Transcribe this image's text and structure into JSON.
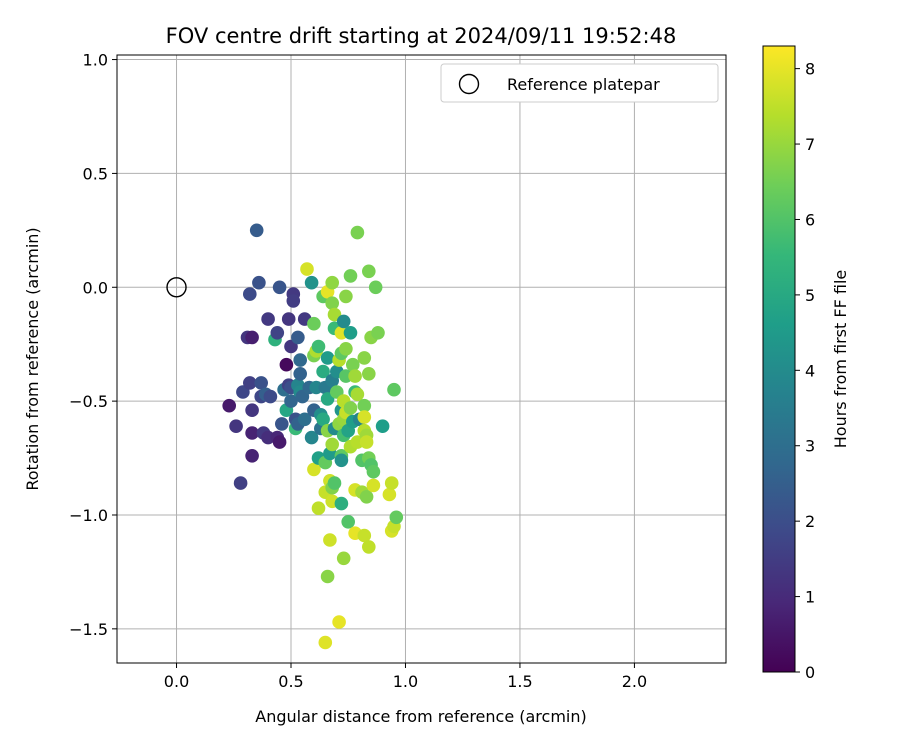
{
  "chart_data": {
    "type": "scatter",
    "title": "FOV centre drift starting at 2024/09/11 19:52:48",
    "xlabel": "Angular distance from reference (arcmin)",
    "ylabel": "Rotation from reference (arcmin)",
    "xlim": [
      -0.26,
      2.4
    ],
    "ylim": [
      -1.65,
      1.02
    ],
    "xticks": [
      0.0,
      0.5,
      1.0,
      1.5,
      2.0
    ],
    "xtick_labels": [
      "0.0",
      "0.5",
      "1.0",
      "1.5",
      "2.0"
    ],
    "yticks": [
      1.0,
      0.5,
      0.0,
      -0.5,
      -1.0,
      -1.5
    ],
    "ytick_labels": [
      "1.0",
      "0.5",
      "0.0",
      "−0.5",
      "−1.0",
      "−1.5"
    ],
    "grid": true,
    "legend": {
      "placement": "top-right",
      "entries": [
        {
          "label": "Reference platepar",
          "marker": "open-circle",
          "color": "#000000"
        }
      ]
    },
    "reference_point": {
      "x": 0.0,
      "y": 0.0
    },
    "colorbar": {
      "label": "Hours from first FF file",
      "min": 0,
      "max": 8.3,
      "ticks": [
        0,
        1,
        2,
        3,
        4,
        5,
        6,
        7,
        8
      ],
      "tick_labels": [
        "0",
        "1",
        "2",
        "3",
        "4",
        "5",
        "6",
        "7",
        "8"
      ],
      "colormap": "viridis",
      "colormap_stops": [
        "#440154",
        "#482878",
        "#3e4989",
        "#31688e",
        "#26828e",
        "#1f9e89",
        "#35b779",
        "#6ece58",
        "#b5de2b",
        "#fde725"
      ]
    },
    "points": [
      {
        "x": 0.23,
        "y": -0.52,
        "t": 0.6
      },
      {
        "x": 0.26,
        "y": -0.61,
        "t": 1.3
      },
      {
        "x": 0.28,
        "y": -0.86,
        "t": 1.6
      },
      {
        "x": 0.29,
        "y": -0.46,
        "t": 1.8
      },
      {
        "x": 0.31,
        "y": -0.22,
        "t": 1.3
      },
      {
        "x": 0.32,
        "y": -0.03,
        "t": 1.9
      },
      {
        "x": 0.32,
        "y": -0.42,
        "t": 1.6
      },
      {
        "x": 0.33,
        "y": -0.54,
        "t": 1.3
      },
      {
        "x": 0.33,
        "y": -0.64,
        "t": 0.8
      },
      {
        "x": 0.33,
        "y": -0.74,
        "t": 0.8
      },
      {
        "x": 0.33,
        "y": -0.22,
        "t": 0.7
      },
      {
        "x": 0.35,
        "y": 0.25,
        "t": 2.4
      },
      {
        "x": 0.36,
        "y": 0.02,
        "t": 2.1
      },
      {
        "x": 0.37,
        "y": -0.42,
        "t": 2.1
      },
      {
        "x": 0.37,
        "y": -0.48,
        "t": 1.8
      },
      {
        "x": 0.38,
        "y": -0.64,
        "t": 1.4
      },
      {
        "x": 0.39,
        "y": -0.47,
        "t": 2.5
      },
      {
        "x": 0.4,
        "y": -0.14,
        "t": 1.4
      },
      {
        "x": 0.4,
        "y": -0.66,
        "t": 1.1
      },
      {
        "x": 0.41,
        "y": -0.48,
        "t": 1.9
      },
      {
        "x": 0.43,
        "y": -0.23,
        "t": 5.3
      },
      {
        "x": 0.44,
        "y": -0.2,
        "t": 1.7
      },
      {
        "x": 0.44,
        "y": -0.66,
        "t": 0.9
      },
      {
        "x": 0.45,
        "y": -0.68,
        "t": 0.6
      },
      {
        "x": 0.45,
        "y": 0.0,
        "t": 2.2
      },
      {
        "x": 0.46,
        "y": -0.6,
        "t": 2.2
      },
      {
        "x": 0.47,
        "y": -0.45,
        "t": 3.0
      },
      {
        "x": 0.48,
        "y": -0.34,
        "t": 0.2
      },
      {
        "x": 0.48,
        "y": -0.54,
        "t": 4.9
      },
      {
        "x": 0.49,
        "y": -0.14,
        "t": 1.3
      },
      {
        "x": 0.49,
        "y": -0.43,
        "t": 1.6
      },
      {
        "x": 0.5,
        "y": -0.26,
        "t": 1.3
      },
      {
        "x": 0.5,
        "y": -0.5,
        "t": 2.7
      },
      {
        "x": 0.5,
        "y": -0.44,
        "t": 2.0
      },
      {
        "x": 0.51,
        "y": -0.03,
        "t": 1.4
      },
      {
        "x": 0.51,
        "y": -0.06,
        "t": 1.5
      },
      {
        "x": 0.52,
        "y": -0.62,
        "t": 5.6
      },
      {
        "x": 0.52,
        "y": -0.58,
        "t": 2.1
      },
      {
        "x": 0.53,
        "y": -0.22,
        "t": 2.4
      },
      {
        "x": 0.53,
        "y": -0.6,
        "t": 2.6
      },
      {
        "x": 0.53,
        "y": -0.43,
        "t": 3.8
      },
      {
        "x": 0.54,
        "y": -0.32,
        "t": 2.8
      },
      {
        "x": 0.54,
        "y": -0.38,
        "t": 2.6
      },
      {
        "x": 0.54,
        "y": -0.46,
        "t": 4.0
      },
      {
        "x": 0.55,
        "y": -0.48,
        "t": 2.7
      },
      {
        "x": 0.56,
        "y": -0.14,
        "t": 1.4
      },
      {
        "x": 0.56,
        "y": -0.58,
        "t": 3.0
      },
      {
        "x": 0.57,
        "y": 0.08,
        "t": 7.8
      },
      {
        "x": 0.58,
        "y": -0.44,
        "t": 2.8
      },
      {
        "x": 0.59,
        "y": 0.02,
        "t": 4.2
      },
      {
        "x": 0.59,
        "y": -0.66,
        "t": 3.8
      },
      {
        "x": 0.6,
        "y": -0.16,
        "t": 6.4
      },
      {
        "x": 0.6,
        "y": -0.3,
        "t": 6.6
      },
      {
        "x": 0.6,
        "y": -0.54,
        "t": 2.6
      },
      {
        "x": 0.6,
        "y": -0.8,
        "t": 7.8
      },
      {
        "x": 0.61,
        "y": -0.28,
        "t": 7.3
      },
      {
        "x": 0.61,
        "y": -0.44,
        "t": 3.8
      },
      {
        "x": 0.62,
        "y": -0.26,
        "t": 5.7
      },
      {
        "x": 0.62,
        "y": -0.75,
        "t": 4.7
      },
      {
        "x": 0.62,
        "y": -0.97,
        "t": 7.5
      },
      {
        "x": 0.63,
        "y": -0.56,
        "t": 4.1
      },
      {
        "x": 0.63,
        "y": -0.62,
        "t": 3.2
      },
      {
        "x": 0.64,
        "y": -0.04,
        "t": 6.2
      },
      {
        "x": 0.64,
        "y": -0.37,
        "t": 5.1
      },
      {
        "x": 0.64,
        "y": -0.58,
        "t": 5.0
      },
      {
        "x": 0.65,
        "y": -0.44,
        "t": 3.4
      },
      {
        "x": 0.65,
        "y": -0.9,
        "t": 7.6
      },
      {
        "x": 0.65,
        "y": -0.77,
        "t": 6.3
      },
      {
        "x": 0.65,
        "y": -1.56,
        "t": 7.9
      },
      {
        "x": 0.66,
        "y": -0.02,
        "t": 8.0
      },
      {
        "x": 0.66,
        "y": -0.31,
        "t": 4.5
      },
      {
        "x": 0.66,
        "y": -0.49,
        "t": 5.0
      },
      {
        "x": 0.66,
        "y": -0.63,
        "t": 6.8
      },
      {
        "x": 0.66,
        "y": -1.27,
        "t": 6.8
      },
      {
        "x": 0.67,
        "y": -1.11,
        "t": 7.7
      },
      {
        "x": 0.67,
        "y": -0.85,
        "t": 7.7
      },
      {
        "x": 0.67,
        "y": -0.73,
        "t": 4.5
      },
      {
        "x": 0.68,
        "y": 0.02,
        "t": 6.9
      },
      {
        "x": 0.68,
        "y": -0.07,
        "t": 6.7
      },
      {
        "x": 0.68,
        "y": -0.41,
        "t": 3.6
      },
      {
        "x": 0.68,
        "y": -0.69,
        "t": 7.1
      },
      {
        "x": 0.68,
        "y": -0.88,
        "t": 6.7
      },
      {
        "x": 0.68,
        "y": -0.94,
        "t": 7.7
      },
      {
        "x": 0.69,
        "y": -0.12,
        "t": 7.2
      },
      {
        "x": 0.69,
        "y": -0.18,
        "t": 5.6
      },
      {
        "x": 0.69,
        "y": -0.62,
        "t": 4.0
      },
      {
        "x": 0.69,
        "y": -0.86,
        "t": 6.0
      },
      {
        "x": 0.7,
        "y": -0.37,
        "t": 4.1
      },
      {
        "x": 0.7,
        "y": -0.46,
        "t": 6.3
      },
      {
        "x": 0.71,
        "y": -0.32,
        "t": 7.4
      },
      {
        "x": 0.71,
        "y": -0.6,
        "t": 6.9
      },
      {
        "x": 0.71,
        "y": -1.47,
        "t": 8.0
      },
      {
        "x": 0.72,
        "y": -0.2,
        "t": 7.9
      },
      {
        "x": 0.72,
        "y": -0.29,
        "t": 6.2
      },
      {
        "x": 0.72,
        "y": -0.54,
        "t": 4.3
      },
      {
        "x": 0.72,
        "y": -0.74,
        "t": 6.2
      },
      {
        "x": 0.72,
        "y": -0.76,
        "t": 4.2
      },
      {
        "x": 0.72,
        "y": -0.95,
        "t": 5.2
      },
      {
        "x": 0.73,
        "y": -0.15,
        "t": 4.0
      },
      {
        "x": 0.73,
        "y": -0.5,
        "t": 7.4
      },
      {
        "x": 0.73,
        "y": -0.58,
        "t": 7.0
      },
      {
        "x": 0.73,
        "y": -0.65,
        "t": 5.8
      },
      {
        "x": 0.73,
        "y": -1.19,
        "t": 7.0
      },
      {
        "x": 0.74,
        "y": -0.04,
        "t": 6.8
      },
      {
        "x": 0.74,
        "y": -0.27,
        "t": 6.8
      },
      {
        "x": 0.74,
        "y": -0.39,
        "t": 6.1
      },
      {
        "x": 0.74,
        "y": -0.55,
        "t": 7.6
      },
      {
        "x": 0.75,
        "y": -1.03,
        "t": 6.0
      },
      {
        "x": 0.75,
        "y": -0.63,
        "t": 4.8
      },
      {
        "x": 0.76,
        "y": 0.05,
        "t": 6.5
      },
      {
        "x": 0.76,
        "y": -0.2,
        "t": 4.6
      },
      {
        "x": 0.76,
        "y": -0.53,
        "t": 6.7
      },
      {
        "x": 0.76,
        "y": -0.7,
        "t": 7.3
      },
      {
        "x": 0.77,
        "y": -0.34,
        "t": 6.6
      },
      {
        "x": 0.77,
        "y": -0.59,
        "t": 4.6
      },
      {
        "x": 0.78,
        "y": -0.46,
        "t": 5.6
      },
      {
        "x": 0.78,
        "y": -0.89,
        "t": 7.8
      },
      {
        "x": 0.78,
        "y": -0.39,
        "t": 7.1
      },
      {
        "x": 0.78,
        "y": -1.08,
        "t": 8.0
      },
      {
        "x": 0.79,
        "y": 0.24,
        "t": 6.6
      },
      {
        "x": 0.79,
        "y": -0.47,
        "t": 7.2
      },
      {
        "x": 0.79,
        "y": -0.68,
        "t": 7.4
      },
      {
        "x": 0.8,
        "y": -0.58,
        "t": 3.8
      },
      {
        "x": 0.81,
        "y": -0.76,
        "t": 6.0
      },
      {
        "x": 0.81,
        "y": -0.9,
        "t": 7.1
      },
      {
        "x": 0.82,
        "y": -0.31,
        "t": 6.8
      },
      {
        "x": 0.82,
        "y": -0.52,
        "t": 6.5
      },
      {
        "x": 0.82,
        "y": -0.57,
        "t": 7.8
      },
      {
        "x": 0.82,
        "y": -0.63,
        "t": 7.4
      },
      {
        "x": 0.82,
        "y": -1.09,
        "t": 7.6
      },
      {
        "x": 0.83,
        "y": -0.65,
        "t": 7.1
      },
      {
        "x": 0.83,
        "y": -0.68,
        "t": 7.6
      },
      {
        "x": 0.83,
        "y": -0.92,
        "t": 6.7
      },
      {
        "x": 0.84,
        "y": 0.07,
        "t": 6.6
      },
      {
        "x": 0.84,
        "y": -0.75,
        "t": 6.5
      },
      {
        "x": 0.84,
        "y": -0.38,
        "t": 6.8
      },
      {
        "x": 0.84,
        "y": -1.14,
        "t": 7.5
      },
      {
        "x": 0.85,
        "y": -0.22,
        "t": 6.8
      },
      {
        "x": 0.85,
        "y": -0.78,
        "t": 6.0
      },
      {
        "x": 0.86,
        "y": -0.81,
        "t": 6.2
      },
      {
        "x": 0.86,
        "y": -0.87,
        "t": 7.8
      },
      {
        "x": 0.87,
        "y": 0.0,
        "t": 6.4
      },
      {
        "x": 0.88,
        "y": -0.2,
        "t": 6.6
      },
      {
        "x": 0.9,
        "y": -0.61,
        "t": 4.6
      },
      {
        "x": 0.93,
        "y": -0.91,
        "t": 7.8
      },
      {
        "x": 0.94,
        "y": -1.07,
        "t": 7.8
      },
      {
        "x": 0.94,
        "y": -0.86,
        "t": 7.6
      },
      {
        "x": 0.95,
        "y": -1.05,
        "t": 7.6
      },
      {
        "x": 0.95,
        "y": -0.45,
        "t": 6.2
      },
      {
        "x": 0.96,
        "y": -1.01,
        "t": 6.3
      }
    ]
  }
}
